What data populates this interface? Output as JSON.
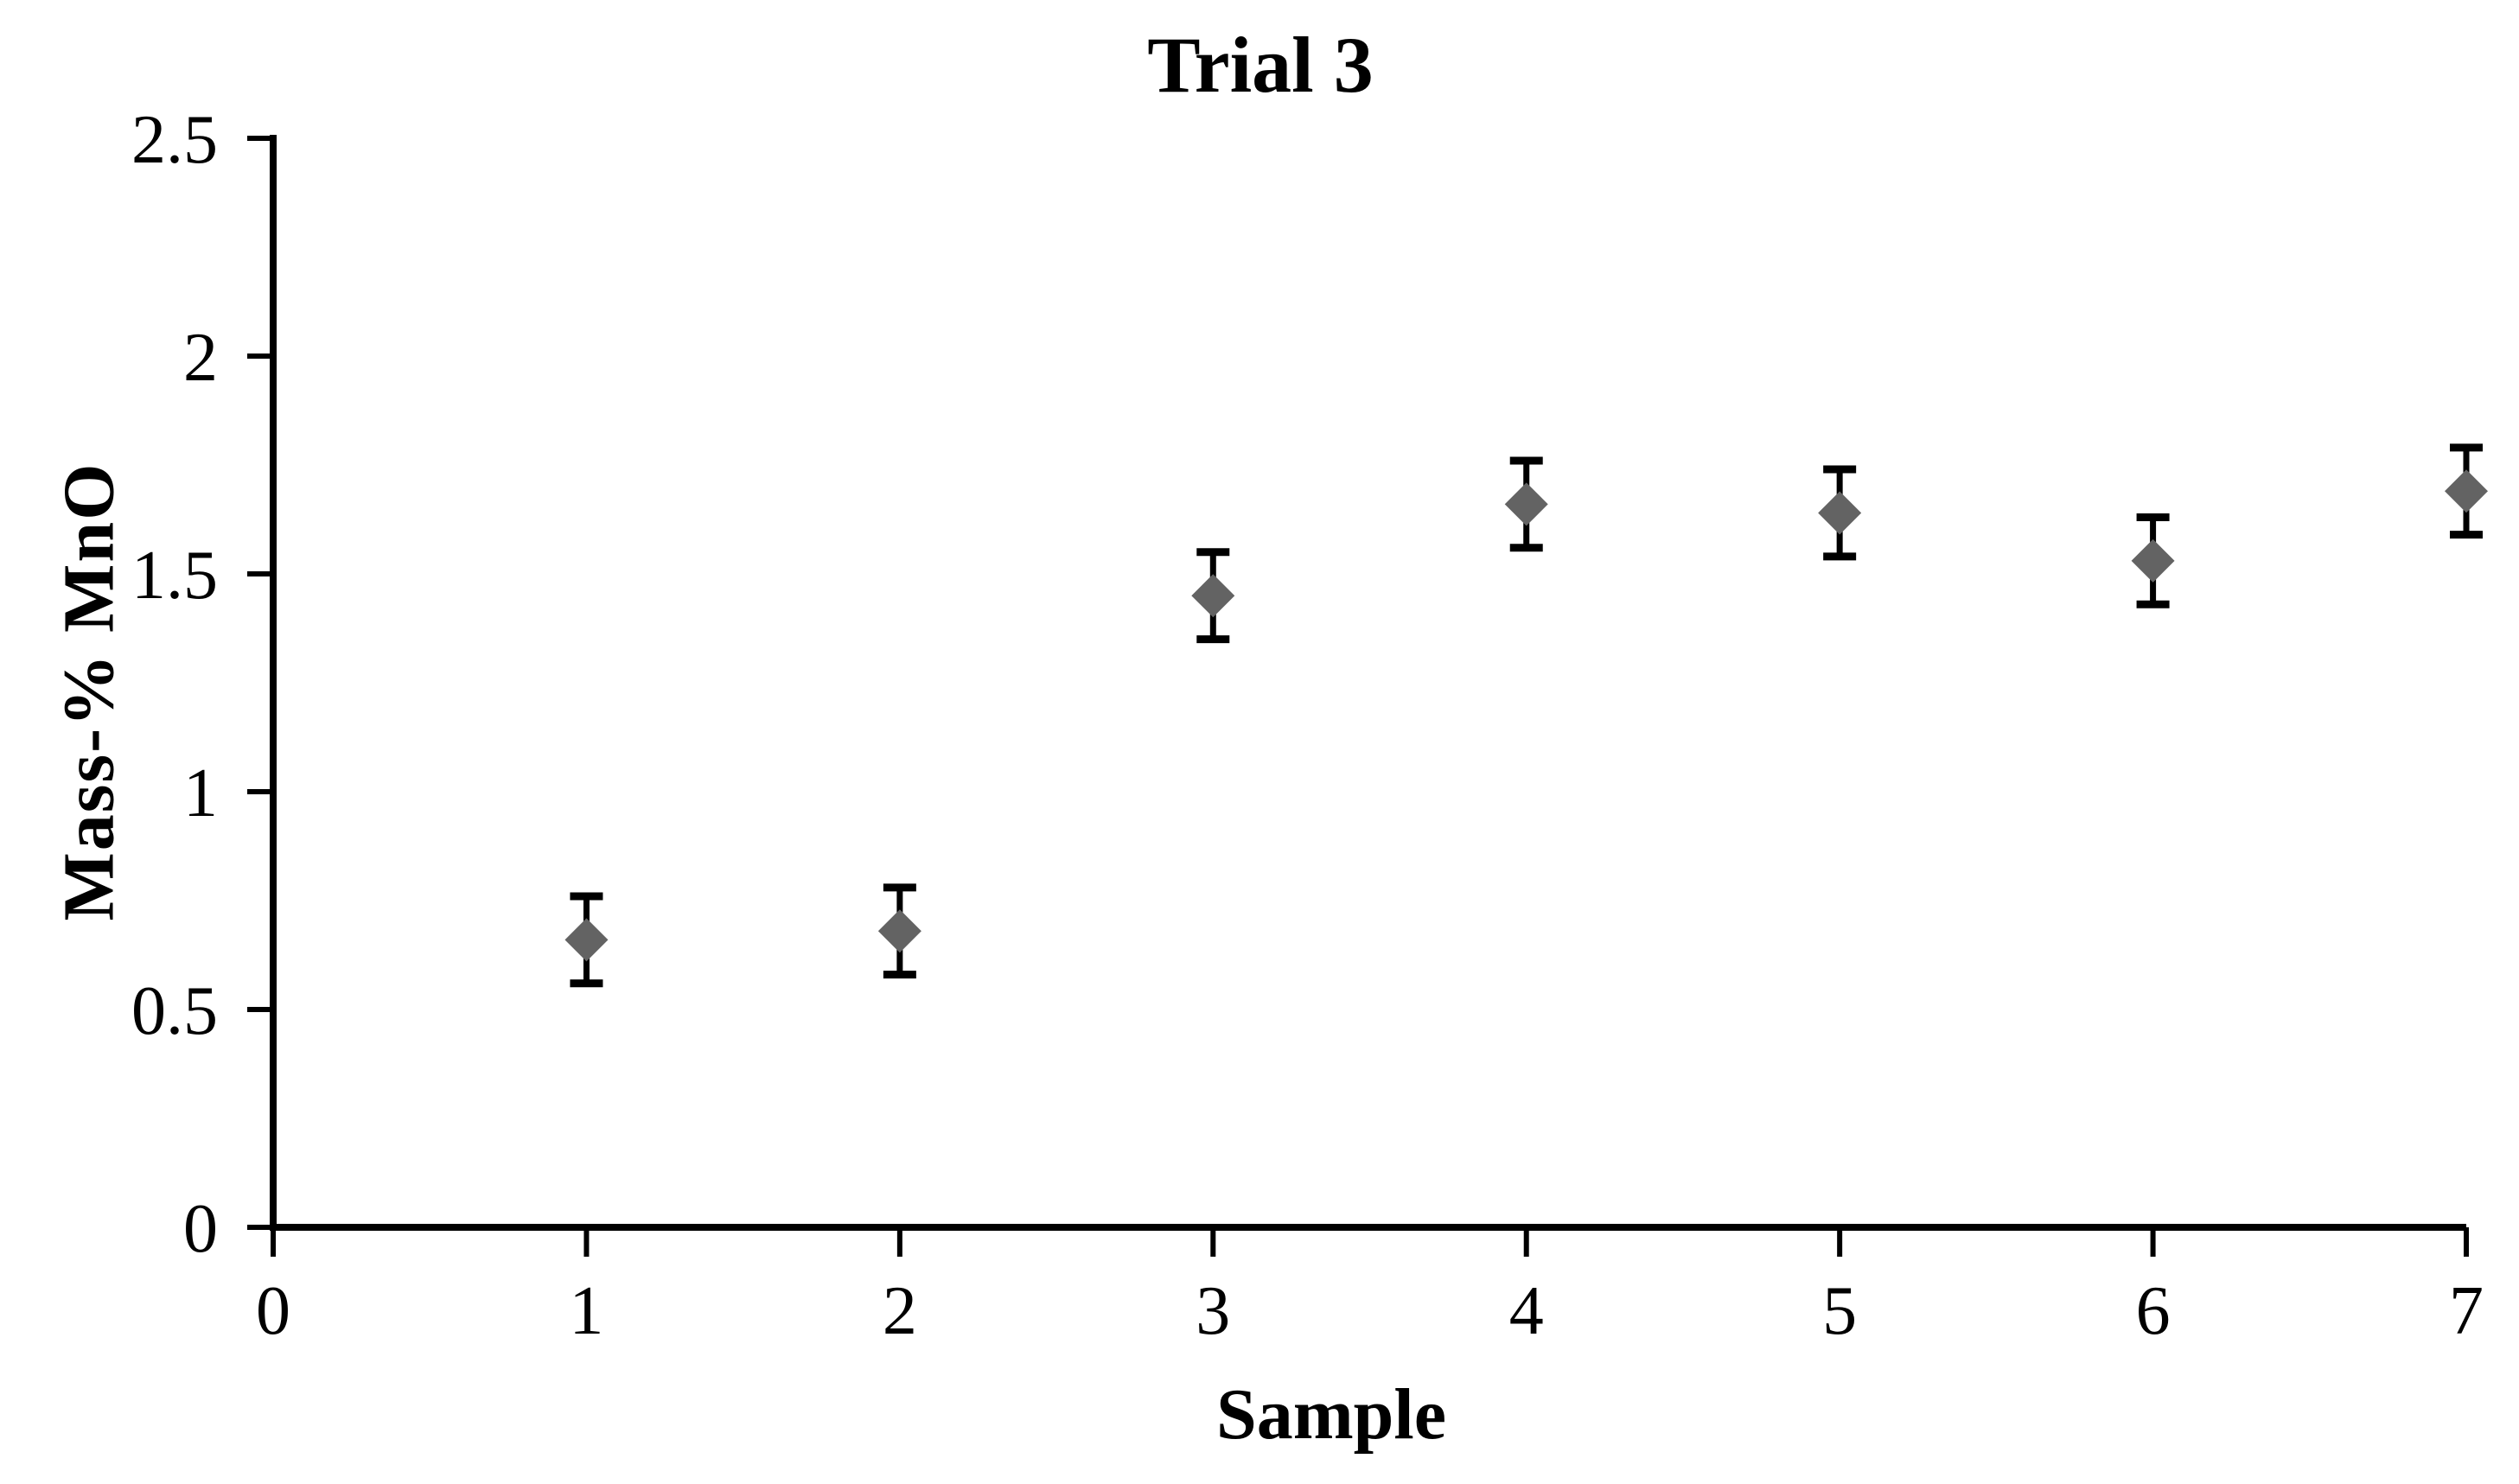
{
  "chart_data": {
    "type": "scatter",
    "title": "Trial 3",
    "xlabel": "Sample",
    "ylabel": "Mass-% MnO",
    "series": [
      {
        "x": [
          1,
          2,
          3,
          4,
          5,
          6,
          7
        ],
        "y": [
          0.66,
          0.68,
          1.45,
          1.66,
          1.64,
          1.53,
          1.69
        ],
        "y_error": [
          0.1,
          0.1,
          0.1,
          0.1,
          0.1,
          0.1,
          0.1
        ]
      }
    ],
    "xlim": [
      0,
      7
    ],
    "ylim": [
      0,
      2.5
    ],
    "x_ticks": [
      0,
      1,
      2,
      3,
      4,
      5,
      6,
      7
    ],
    "x_tick_labels": [
      "0",
      "1",
      "2",
      "3",
      "4",
      "5",
      "6",
      "7"
    ],
    "y_ticks": [
      0,
      0.5,
      1,
      1.5,
      2,
      2.5
    ],
    "y_tick_labels": [
      "0",
      "0.5",
      "1",
      "1.5",
      "2",
      "2.5"
    ],
    "grid": false,
    "legend": false,
    "marker": "diamond",
    "colors": {
      "marker": "#636363",
      "error_bar": "#000000",
      "axis": "#000000",
      "text": "#000000",
      "background": "#ffffff"
    }
  }
}
